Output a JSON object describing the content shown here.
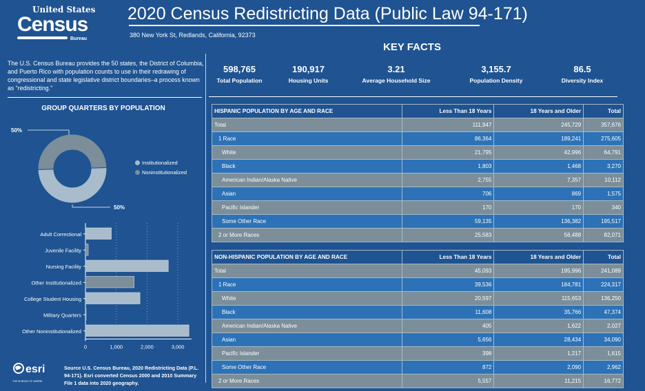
{
  "logo": {
    "line1": "United States",
    "line2": "Census",
    "line3": "Bureau"
  },
  "header": {
    "title": "2020 Census Redistricting Data (Public Law 94-171)",
    "address": "380 New York St, Redlands, California, 92373"
  },
  "key_facts": {
    "title": "KEY FACTS",
    "stats": [
      {
        "value": "598,765",
        "label": "Total Population"
      },
      {
        "value": "190,917",
        "label": "Housing Units"
      },
      {
        "value": "3.21",
        "label": "Average Household Size"
      },
      {
        "value": "3,155.7",
        "label": "Population Density"
      },
      {
        "value": "86.5",
        "label": "Diversity Index"
      }
    ]
  },
  "intro": "The U.S. Census Bureau provides the 50 states, the District of Columbia, and Puerto Rico with population counts to use in their redrawing of congressional and state legislative district boundaries–a process known as “redistricting.”",
  "colors": {
    "background": "#1f5391",
    "row_gray": "#7b8e99",
    "row_blue": "#2d72b6",
    "light_bar": "#a8bccb",
    "dark_bar": "#7b8e99"
  },
  "chart_data": [
    {
      "type": "pie",
      "title": "GROUP QUARTERS BY POPULATION",
      "donut": true,
      "slices": [
        {
          "name": "Institutionalized",
          "value": 50,
          "label": "50%",
          "color": "#a8bccb"
        },
        {
          "name": "Noninstitutionalized",
          "value": 50,
          "label": "50%",
          "color": "#7b8e99"
        }
      ],
      "legend": "right"
    },
    {
      "type": "bar",
      "orientation": "horizontal",
      "categories": [
        "Adult Correctional",
        "Juvenile Facility",
        "Nursing Facility",
        "Other Institutionalized",
        "College Student Housing",
        "Military Quarters",
        "Other Noninstitutionalized"
      ],
      "values": [
        840,
        90,
        2690,
        1580,
        1770,
        20,
        3360
      ],
      "colors": [
        "#a8bccb",
        "#7b8e99",
        "#a8bccb",
        "#7b8e99",
        "#a8bccb",
        "#7b8e99",
        "#a8bccb"
      ],
      "xlim": [
        0,
        3400
      ],
      "xticks": [
        "0",
        "1,000",
        "2,000",
        "3,000"
      ],
      "grid": "vertical-dotted"
    }
  ],
  "source": {
    "logo": "esri",
    "tagline": "THE SCIENCE OF WHERE",
    "text": "Source U.S. Census Bureau, 2020 Redistricting Data (P.L. 94-171).  Esri converted Census 2000 and 2010 Summary File 1 data into 2020 geography."
  },
  "tables": [
    {
      "title": "HISPANIC POPULATION BY AGE AND RACE",
      "columns": [
        "Less Than 18 Years",
        "18 Years and Older",
        "Total"
      ],
      "rows": [
        {
          "label": "Total",
          "indent": 0,
          "values": [
            "111,947",
            "245,729",
            "357,676"
          ]
        },
        {
          "label": "1 Race",
          "indent": 1,
          "values": [
            "86,364",
            "189,241",
            "275,605"
          ]
        },
        {
          "label": "White",
          "indent": 2,
          "values": [
            "21,795",
            "42,996",
            "64,791"
          ]
        },
        {
          "label": "Black",
          "indent": 2,
          "values": [
            "1,803",
            "1,468",
            "3,270"
          ]
        },
        {
          "label": "American Indian/Alaska Native",
          "indent": 2,
          "values": [
            "2,755",
            "7,357",
            "10,112"
          ]
        },
        {
          "label": "Asian",
          "indent": 2,
          "values": [
            "706",
            "869",
            "1,575"
          ]
        },
        {
          "label": "Pacific Islander",
          "indent": 2,
          "values": [
            "170",
            "170",
            "340"
          ]
        },
        {
          "label": "Some Other Race",
          "indent": 2,
          "values": [
            "59,135",
            "136,382",
            "195,517"
          ]
        },
        {
          "label": "2 or More Races",
          "indent": 1,
          "values": [
            "25,583",
            "56,488",
            "82,071"
          ]
        }
      ]
    },
    {
      "title": "NON-HISPANIC POPULATION BY AGE AND RACE",
      "columns": [
        "Less Than 18 Years",
        "18 Years and Older",
        "Total"
      ],
      "rows": [
        {
          "label": "Total",
          "indent": 0,
          "values": [
            "45,093",
            "195,996",
            "241,089"
          ]
        },
        {
          "label": "1 Race",
          "indent": 1,
          "values": [
            "39,536",
            "184,781",
            "224,317"
          ]
        },
        {
          "label": "White",
          "indent": 2,
          "values": [
            "20,597",
            "115,653",
            "136,250"
          ]
        },
        {
          "label": "Black",
          "indent": 2,
          "values": [
            "11,608",
            "35,766",
            "47,374"
          ]
        },
        {
          "label": "American Indian/Alaska Native",
          "indent": 2,
          "values": [
            "405",
            "1,622",
            "2,027"
          ]
        },
        {
          "label": "Asian",
          "indent": 2,
          "values": [
            "5,656",
            "28,434",
            "34,090"
          ]
        },
        {
          "label": "Pacific Islander",
          "indent": 2,
          "values": [
            "398",
            "1,217",
            "1,615"
          ]
        },
        {
          "label": "Some Other Race",
          "indent": 2,
          "values": [
            "872",
            "2,090",
            "2,962"
          ]
        },
        {
          "label": "2 or More Races",
          "indent": 1,
          "values": [
            "5,557",
            "11,215",
            "16,772"
          ]
        }
      ]
    }
  ]
}
